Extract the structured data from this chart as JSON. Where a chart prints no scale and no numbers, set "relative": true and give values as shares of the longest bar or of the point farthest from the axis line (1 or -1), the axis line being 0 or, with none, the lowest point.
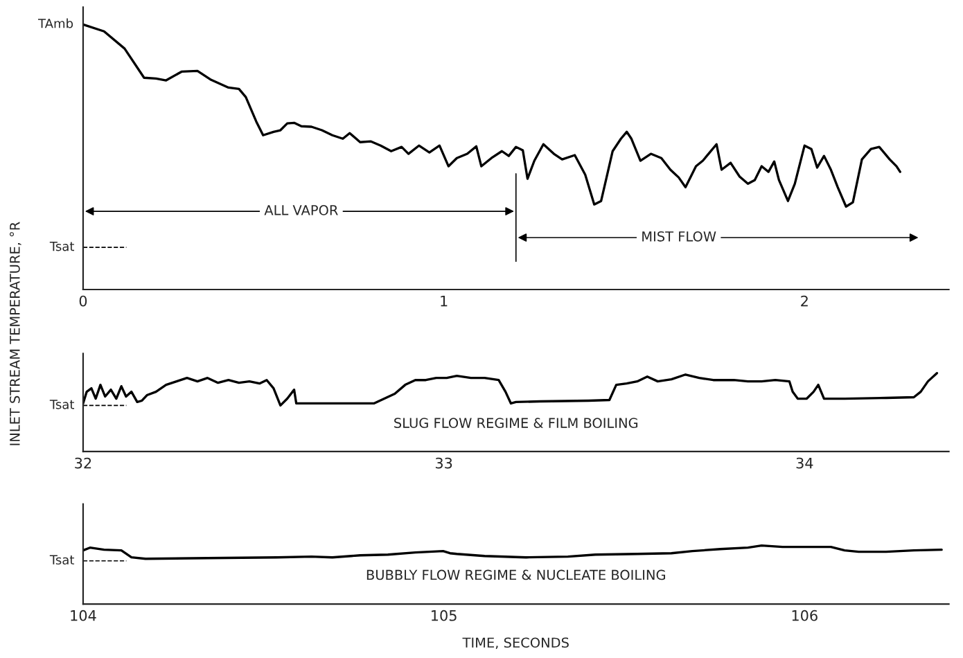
{
  "chart_data": [
    {
      "type": "line",
      "relative": true,
      "xlim": [
        0,
        2.4
      ],
      "xticks": [
        0,
        1,
        2
      ],
      "tick_labels": "x",
      "x": [
        0,
        0.058,
        0.115,
        0.169,
        0.202,
        0.23,
        0.273,
        0.317,
        0.355,
        0.403,
        0.432,
        0.451,
        0.48,
        0.499,
        0.528,
        0.547,
        0.566,
        0.585,
        0.605,
        0.633,
        0.662,
        0.691,
        0.72,
        0.739,
        0.768,
        0.797,
        0.825,
        0.854,
        0.883,
        0.902,
        0.931,
        0.96,
        0.988,
        1.013,
        1.036,
        1.065,
        1.09,
        1.104,
        1.132,
        1.161,
        1.18,
        1.2,
        1.219,
        1.232,
        1.251,
        1.276,
        1.305,
        1.328,
        1.363,
        1.392,
        1.417,
        1.436,
        1.468,
        1.491,
        1.507,
        1.52,
        1.545,
        1.574,
        1.603,
        1.628,
        1.651,
        1.67,
        1.699,
        1.718,
        1.737,
        1.756,
        1.77,
        1.795,
        1.82,
        1.843,
        1.862,
        1.881,
        1.9,
        1.916,
        1.929,
        1.954,
        1.973,
        2.0,
        2.019,
        2.035,
        2.054,
        2.073,
        2.092,
        2.115,
        2.134,
        2.159,
        2.184,
        2.207,
        2.236,
        2.255,
        2.265
      ],
      "series": [
        {
          "color": "#000000",
          "values": [
            1.0,
            0.974,
            0.909,
            0.799,
            0.796,
            0.789,
            0.822,
            0.825,
            0.791,
            0.762,
            0.757,
            0.726,
            0.634,
            0.582,
            0.595,
            0.601,
            0.627,
            0.629,
            0.616,
            0.614,
            0.601,
            0.582,
            0.569,
            0.59,
            0.556,
            0.559,
            0.543,
            0.522,
            0.538,
            0.512,
            0.543,
            0.517,
            0.543,
            0.465,
            0.496,
            0.512,
            0.54,
            0.465,
            0.496,
            0.522,
            0.504,
            0.538,
            0.525,
            0.418,
            0.486,
            0.548,
            0.512,
            0.491,
            0.507,
            0.433,
            0.321,
            0.334,
            0.522,
            0.569,
            0.595,
            0.569,
            0.486,
            0.512,
            0.496,
            0.452,
            0.423,
            0.386,
            0.465,
            0.486,
            0.517,
            0.548,
            0.452,
            0.478,
            0.426,
            0.399,
            0.413,
            0.465,
            0.444,
            0.483,
            0.413,
            0.334,
            0.399,
            0.543,
            0.53,
            0.46,
            0.504,
            0.452,
            0.386,
            0.313,
            0.329,
            0.491,
            0.53,
            0.538,
            0.491,
            0.465,
            0.444
          ]
        }
      ],
      "ref_lines": [
        {
          "axis": "y",
          "value": 0.159,
          "label": "Tsat",
          "line_style": "dashed"
        },
        {
          "axis": "x",
          "value": 1.2
        }
      ],
      "annotations": [
        {
          "text": "TAmb",
          "x": 0,
          "y": 1.0
        },
        "ALL VAPOR",
        "MIST FLOW"
      ]
    },
    {
      "type": "line",
      "relative": true,
      "xlim": [
        32,
        34.4
      ],
      "xticks": [
        32,
        33,
        34
      ],
      "tick_labels": "x",
      "ylabel": "INLET STREAM TEMPERATURE, °R",
      "x": [
        32,
        32.01,
        32.023,
        32.035,
        32.048,
        32.061,
        32.077,
        32.092,
        32.106,
        32.119,
        32.134,
        32.15,
        32.163,
        32.177,
        32.202,
        32.23,
        32.259,
        32.288,
        32.317,
        32.345,
        32.374,
        32.403,
        32.432,
        32.461,
        32.489,
        32.509,
        32.528,
        32.547,
        32.566,
        32.585,
        32.591,
        32.633,
        32.729,
        32.806,
        32.835,
        32.864,
        32.893,
        32.921,
        32.95,
        32.979,
        33.008,
        33.036,
        33.075,
        33.113,
        33.152,
        33.171,
        33.186,
        33.2,
        33.267,
        33.401,
        33.459,
        33.478,
        33.507,
        33.536,
        33.564,
        33.593,
        33.631,
        33.67,
        33.708,
        33.747,
        33.804,
        33.843,
        33.881,
        33.919,
        33.958,
        33.967,
        33.981,
        34.006,
        34.025,
        34.038,
        34.054,
        34.111,
        34.226,
        34.303,
        34.322,
        34.342,
        34.367
      ],
      "series": [
        {
          "color": "#000000",
          "values": [
            0.614,
            0.763,
            0.807,
            0.675,
            0.851,
            0.702,
            0.789,
            0.675,
            0.833,
            0.702,
            0.763,
            0.632,
            0.649,
            0.719,
            0.763,
            0.851,
            0.895,
            0.939,
            0.895,
            0.939,
            0.877,
            0.912,
            0.877,
            0.895,
            0.868,
            0.912,
            0.807,
            0.588,
            0.675,
            0.789,
            0.614,
            0.614,
            0.614,
            0.614,
            0.675,
            0.737,
            0.851,
            0.912,
            0.912,
            0.939,
            0.939,
            0.965,
            0.939,
            0.939,
            0.912,
            0.763,
            0.614,
            0.632,
            0.64,
            0.649,
            0.658,
            0.851,
            0.868,
            0.895,
            0.956,
            0.895,
            0.921,
            0.982,
            0.939,
            0.912,
            0.912,
            0.895,
            0.895,
            0.912,
            0.895,
            0.763,
            0.675,
            0.675,
            0.763,
            0.851,
            0.675,
            0.675,
            0.684,
            0.693,
            0.763,
            0.895,
            1.0
          ]
        }
      ],
      "ref_lines": [
        {
          "axis": "y",
          "value": 0.588,
          "label": "Tsat",
          "line_style": "dashed"
        }
      ],
      "annotations": [
        "SLUG FLOW REGIME & FILM BOILING"
      ]
    },
    {
      "type": "line",
      "relative": true,
      "xlim": [
        104,
        106.4
      ],
      "xticks": [
        104,
        105,
        106
      ],
      "tick_labels": "x",
      "xlabel": "TIME, SECONDS",
      "x": [
        104,
        104.019,
        104.058,
        104.106,
        104.134,
        104.173,
        104.345,
        104.537,
        104.633,
        104.691,
        104.768,
        104.845,
        104.921,
        104.998,
        105.017,
        105.036,
        105.113,
        105.228,
        105.344,
        105.42,
        105.536,
        105.631,
        105.689,
        105.766,
        105.843,
        105.881,
        105.939,
        105.996,
        106.073,
        106.111,
        106.15,
        106.226,
        106.303,
        106.38
      ],
      "series": [
        {
          "color": "#000000",
          "values": [
            0.917,
            0.964,
            0.929,
            0.917,
            0.798,
            0.774,
            0.786,
            0.798,
            0.81,
            0.798,
            0.833,
            0.845,
            0.881,
            0.905,
            0.869,
            0.857,
            0.821,
            0.798,
            0.81,
            0.845,
            0.857,
            0.869,
            0.905,
            0.94,
            0.964,
            1.0,
            0.976,
            0.976,
            0.976,
            0.917,
            0.893,
            0.893,
            0.917,
            0.929
          ]
        }
      ],
      "ref_lines": [
        {
          "axis": "y",
          "value": 0.738,
          "label": "Tsat",
          "line_style": "dashed"
        }
      ],
      "annotations": [
        "BUBBLY FLOW REGIME & NUCLEATE BOILING"
      ]
    }
  ]
}
